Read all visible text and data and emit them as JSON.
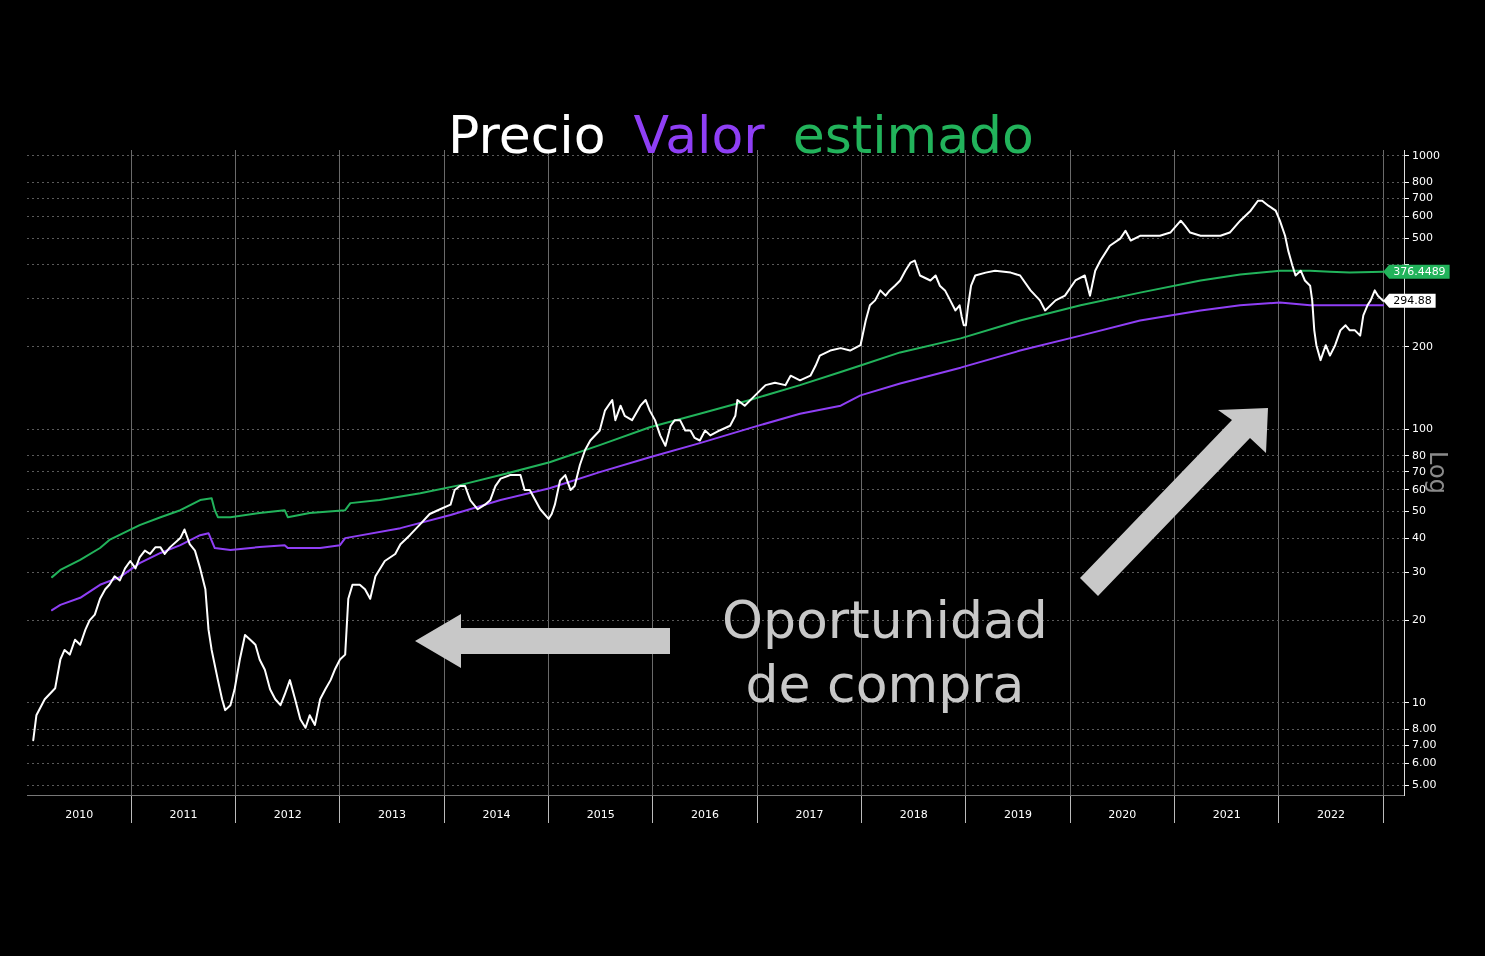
{
  "chart_data": {
    "type": "line",
    "log": "y",
    "grid": true,
    "legend": "top",
    "marker": "none",
    "ylabel": "Log",
    "xlim": [
      2010,
      2023.2
    ],
    "xticks": [
      {
        "value": 2010.5,
        "label": "2010"
      },
      {
        "value": 2011,
        "label": null
      },
      {
        "value": 2011.5,
        "label": "2011"
      },
      {
        "value": 2012,
        "label": null
      },
      {
        "value": 2012.5,
        "label": "2012"
      },
      {
        "value": 2013,
        "label": null
      },
      {
        "value": 2013.5,
        "label": "2013"
      },
      {
        "value": 2014,
        "label": null
      },
      {
        "value": 2014.5,
        "label": "2014"
      },
      {
        "value": 2015,
        "label": null
      },
      {
        "value": 2015.5,
        "label": "2015"
      },
      {
        "value": 2016,
        "label": null
      },
      {
        "value": 2016.5,
        "label": "2016"
      },
      {
        "value": 2017,
        "label": null
      },
      {
        "value": 2017.5,
        "label": "2017"
      },
      {
        "value": 2018,
        "label": null
      },
      {
        "value": 2018.5,
        "label": "2018"
      },
      {
        "value": 2019,
        "label": null
      },
      {
        "value": 2019.5,
        "label": "2019"
      },
      {
        "value": 2020,
        "label": null
      },
      {
        "value": 2020.5,
        "label": "2020"
      },
      {
        "value": 2021,
        "label": null
      },
      {
        "value": 2021.5,
        "label": "2021"
      },
      {
        "value": 2022,
        "label": null
      },
      {
        "value": 2022.5,
        "label": "2022"
      },
      {
        "value": 2023,
        "label": null
      }
    ],
    "ylim": [
      4.6,
      1050
    ],
    "yticks": [
      {
        "value": 5,
        "label": "5.00"
      },
      {
        "value": 6,
        "label": "6.00"
      },
      {
        "value": 7,
        "label": "7.00"
      },
      {
        "value": 8,
        "label": "8.00"
      },
      10,
      20,
      30,
      40,
      50,
      60,
      70,
      80,
      100,
      200,
      {
        "value": 300,
        "label": null
      },
      {
        "value": 400,
        "label": null
      },
      500,
      600,
      700,
      800,
      1000
    ],
    "series": [
      {
        "name": "Precio",
        "color": "#ffffff",
        "x": [
          2010.06,
          2010.09,
          2010.17,
          2010.27,
          2010.32,
          2010.36,
          2010.41,
          2010.46,
          2010.51,
          2010.56,
          2010.6,
          2010.65,
          2010.7,
          2010.75,
          2010.79,
          2010.84,
          2010.89,
          2010.94,
          2010.99,
          2011.04,
          2011.08,
          2011.13,
          2011.18,
          2011.23,
          2011.28,
          2011.32,
          2011.37,
          2011.47,
          2011.51,
          2011.56,
          2011.61,
          2011.66,
          2011.71,
          2011.74,
          2011.77,
          2011.83,
          2011.87,
          2011.9,
          2011.95,
          2011.99,
          2012.04,
          2012.09,
          2012.14,
          2012.19,
          2012.23,
          2012.28,
          2012.33,
          2012.38,
          2012.43,
          2012.47,
          2012.52,
          2012.57,
          2012.62,
          2012.67,
          2012.71,
          2012.76,
          2012.81,
          2012.86,
          2012.91,
          2012.95,
          2013.0,
          2013.05,
          2013.08,
          2013.12,
          2013.19,
          2013.24,
          2013.29,
          2013.34,
          2013.43,
          2013.53,
          2013.58,
          2013.67,
          2013.77,
          2013.86,
          2013.96,
          2014.06,
          2014.1,
          2014.15,
          2014.2,
          2014.25,
          2014.32,
          2014.39,
          2014.44,
          2014.49,
          2014.54,
          2014.63,
          2014.73,
          2014.77,
          2014.82,
          2014.92,
          2015.0,
          2015.03,
          2015.06,
          2015.11,
          2015.16,
          2015.21,
          2015.25,
          2015.3,
          2015.35,
          2015.4,
          2015.49,
          2015.54,
          2015.61,
          2015.64,
          2015.69,
          2015.73,
          2015.8,
          2015.88,
          2015.93,
          2015.97,
          2016.02,
          2016.07,
          2016.12,
          2016.17,
          2016.21,
          2016.26,
          2016.31,
          2016.36,
          2016.4,
          2016.45,
          2016.5,
          2016.55,
          2016.64,
          2016.74,
          2016.79,
          2016.81,
          2016.88,
          2016.98,
          2017.08,
          2017.17,
          2017.27,
          2017.32,
          2017.41,
          2017.51,
          2017.56,
          2017.6,
          2017.7,
          2017.8,
          2017.89,
          2017.99,
          2018.04,
          2018.08,
          2018.13,
          2018.18,
          2018.23,
          2018.27,
          2018.32,
          2018.37,
          2018.42,
          2018.47,
          2018.51,
          2018.56,
          2018.66,
          2018.71,
          2018.75,
          2018.8,
          2018.85,
          2018.9,
          2018.94,
          2018.96,
          2018.98,
          2019.0,
          2019.02,
          2019.05,
          2019.09,
          2019.19,
          2019.28,
          2019.43,
          2019.52,
          2019.62,
          2019.71,
          2019.76,
          2019.86,
          2019.95,
          2020.05,
          2020.14,
          2020.19,
          2020.24,
          2020.29,
          2020.38,
          2020.48,
          2020.53,
          2020.58,
          2020.67,
          2020.77,
          2020.86,
          2020.96,
          2021.06,
          2021.1,
          2021.15,
          2021.25,
          2021.34,
          2021.44,
          2021.53,
          2021.63,
          2021.73,
          2021.8,
          2021.84,
          2021.9,
          2021.97,
          2022.01,
          2022.06,
          2022.09,
          2022.13,
          2022.16,
          2022.21,
          2022.25,
          2022.3,
          2022.32,
          2022.34,
          2022.36,
          2022.4,
          2022.45,
          2022.49,
          2022.54,
          2022.59,
          2022.64,
          2022.68,
          2022.73,
          2022.78,
          2022.81,
          2022.85,
          2022.88,
          2022.92,
          2022.95,
          2023.0
        ],
        "values": [
          7.3,
          9.0,
          10.3,
          11.3,
          14.4,
          15.6,
          15.0,
          17,
          16.3,
          18.5,
          20,
          21,
          24,
          26,
          27,
          29,
          28,
          31,
          33,
          31,
          34,
          36,
          35,
          37,
          37,
          35,
          37,
          40,
          43,
          38,
          36,
          31,
          26,
          18.5,
          15.6,
          12.1,
          10.3,
          9.4,
          9.8,
          11.2,
          14.4,
          17.7,
          17,
          16.3,
          14.4,
          13.2,
          11.2,
          10.3,
          9.8,
          10.7,
          12.1,
          10.3,
          8.7,
          8.1,
          9.0,
          8.3,
          10.3,
          11.2,
          12.1,
          13.2,
          14.4,
          15.0,
          24,
          27,
          27,
          26,
          24,
          29,
          33,
          35,
          38,
          41,
          45,
          49,
          51,
          53,
          60,
          62,
          62,
          55,
          51,
          53,
          55,
          62,
          66,
          68,
          68,
          60,
          60,
          51,
          47,
          49,
          53,
          65,
          68,
          60,
          62,
          74,
          84,
          91,
          99,
          117,
          128,
          108,
          122,
          112,
          108,
          122,
          128,
          117,
          108,
          95,
          87,
          103,
          108,
          108,
          99,
          99,
          93,
          91,
          99,
          95,
          99,
          103,
          112,
          128,
          122,
          133,
          145,
          148,
          145,
          157,
          151,
          157,
          171,
          186,
          194,
          198,
          194,
          203,
          250,
          284,
          296,
          322,
          308,
          322,
          335,
          350,
          380,
          407,
          414,
          365,
          350,
          365,
          335,
          322,
          296,
          272,
          284,
          258,
          240,
          240,
          280,
          335,
          365,
          374,
          380,
          374,
          365,
          322,
          296,
          272,
          296,
          308,
          350,
          365,
          308,
          380,
          414,
          469,
          498,
          532,
          490,
          510,
          510,
          510,
          524,
          579,
          555,
          524,
          510,
          510,
          510,
          524,
          579,
          630,
          685,
          685,
          657,
          630,
          579,
          510,
          450,
          397,
          365,
          380,
          350,
          335,
          296,
          230,
          203,
          179,
          203,
          186,
          203,
          230,
          240,
          230,
          230,
          220,
          261,
          284,
          296,
          322,
          308,
          294.88
        ]
      },
      {
        "name": "Valor",
        "color": "#8f3ff5",
        "x": [
          2010.24,
          2010.32,
          2010.51,
          2010.7,
          2010.89,
          2011.08,
          2011.28,
          2011.47,
          2011.66,
          2011.74,
          2011.8,
          2011.95,
          2012.23,
          2012.47,
          2012.5,
          2012.81,
          2013.0,
          2013.05,
          2013.58,
          2014.06,
          2014.54,
          2015.01,
          2015.49,
          2015.97,
          2016.45,
          2016.93,
          2017.41,
          2017.8,
          2017.99,
          2018.37,
          2018.95,
          2019.52,
          2020.1,
          2020.67,
          2021.25,
          2021.63,
          2022.01,
          2022.3,
          2023.0
        ],
        "values": [
          21.8,
          22.8,
          24.2,
          27,
          28.8,
          32.4,
          35.3,
          37.7,
          41,
          41.7,
          36.8,
          36.2,
          37.1,
          37.7,
          36.8,
          36.8,
          37.7,
          40,
          43.5,
          48.6,
          55.1,
          60.9,
          69.7,
          79,
          89,
          101,
          114,
          122,
          133,
          147,
          168,
          194,
          220,
          250,
          272,
          284,
          291,
          284,
          284
        ]
      },
      {
        "name": "estimado",
        "color": "#22b35b",
        "x": [
          2010.24,
          2010.32,
          2010.51,
          2010.7,
          2010.79,
          2011.08,
          2011.28,
          2011.47,
          2011.66,
          2011.77,
          2011.8,
          2011.83,
          2011.95,
          2012.23,
          2012.47,
          2012.5,
          2012.71,
          2013.05,
          2013.1,
          2013.38,
          2013.77,
          2014.15,
          2014.54,
          2015.01,
          2015.49,
          2015.97,
          2016.45,
          2016.93,
          2017.41,
          2017.8,
          2017.99,
          2018.37,
          2018.95,
          2019.52,
          2020.1,
          2020.67,
          2021.25,
          2021.63,
          2022.01,
          2022.3,
          2022.49,
          2022.68,
          2023.0
        ],
        "values": [
          28.8,
          30.6,
          33.3,
          36.8,
          39.4,
          44.6,
          47.7,
          50.6,
          55.1,
          56,
          50.6,
          47.7,
          47.7,
          49.4,
          50.6,
          47.7,
          49.4,
          50.6,
          53.7,
          55.1,
          58.4,
          62.5,
          68,
          75.8,
          87.5,
          101.7,
          114,
          128,
          145,
          162,
          171,
          191,
          215,
          250,
          284,
          316,
          350,
          368,
          380,
          380,
          377,
          374,
          376.4489
        ]
      }
    ],
    "annotations": [
      "Oportunidad de compra",
      {
        "text": "376.4489",
        "x": 2023,
        "y": 376.4489
      },
      {
        "text": "294.88",
        "x": 2023,
        "y": 294.88
      }
    ]
  }
}
